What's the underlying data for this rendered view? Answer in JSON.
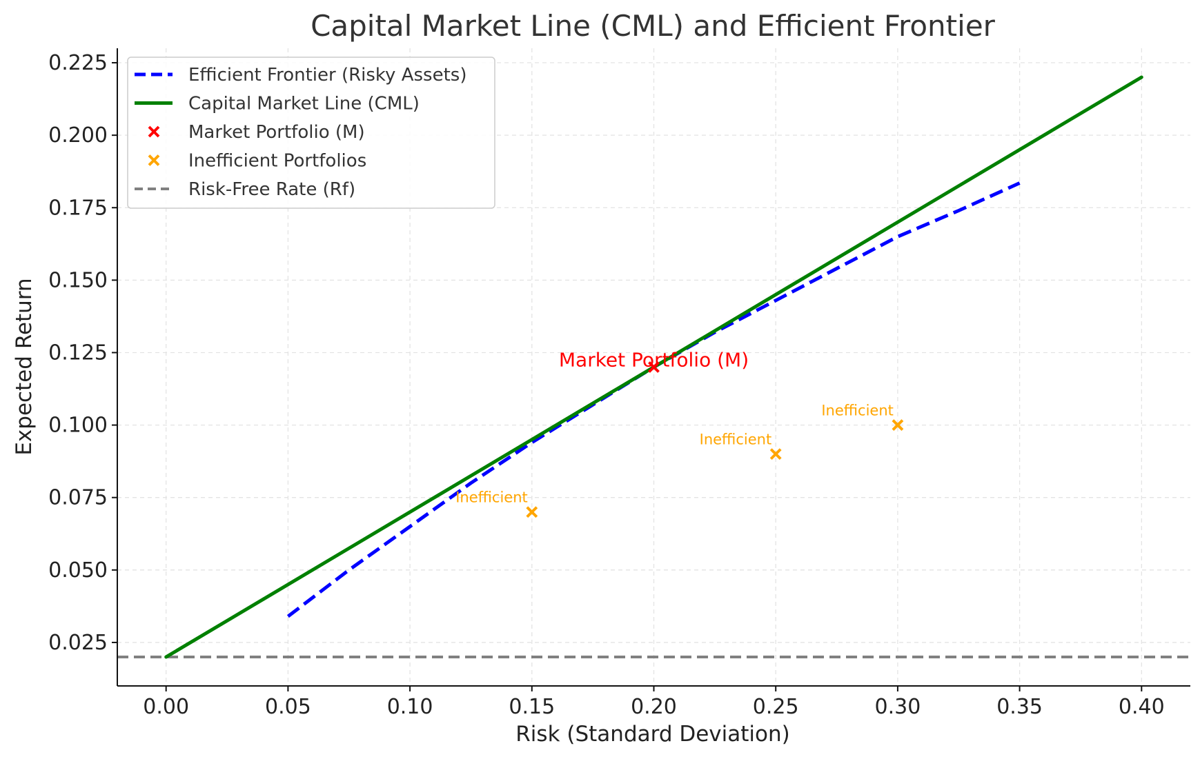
{
  "chart_data": {
    "type": "line",
    "title": "Capital Market Line (CML) and Efficient Frontier",
    "xlabel": "Risk (Standard Deviation)",
    "ylabel": "Expected Return",
    "xlim": [
      -0.02,
      0.42
    ],
    "ylim": [
      0.01,
      0.23
    ],
    "xticks": [
      "0.00",
      "0.05",
      "0.10",
      "0.15",
      "0.20",
      "0.25",
      "0.30",
      "0.35",
      "0.40"
    ],
    "yticks": [
      "0.025",
      "0.050",
      "0.075",
      "0.100",
      "0.125",
      "0.150",
      "0.175",
      "0.200",
      "0.225"
    ],
    "grid": true,
    "legend_position": "top-left",
    "series": [
      {
        "name": "Efficient Frontier (Risky Assets)",
        "kind": "line",
        "style": "dashed",
        "color": "#0000ff",
        "points": [
          [
            0.05,
            0.034
          ],
          [
            0.075,
            0.05
          ],
          [
            0.1,
            0.065
          ],
          [
            0.125,
            0.08
          ],
          [
            0.15,
            0.094
          ],
          [
            0.175,
            0.107
          ],
          [
            0.2,
            0.12
          ],
          [
            0.225,
            0.132
          ],
          [
            0.25,
            0.143
          ],
          [
            0.275,
            0.154
          ],
          [
            0.3,
            0.165
          ],
          [
            0.325,
            0.174
          ],
          [
            0.35,
            0.1835
          ]
        ]
      },
      {
        "name": "Capital Market Line (CML)",
        "kind": "line",
        "style": "solid",
        "color": "#008000",
        "points": [
          [
            0.0,
            0.02
          ],
          [
            0.4,
            0.22
          ]
        ]
      },
      {
        "name": "Market Portfolio (M)",
        "kind": "scatter",
        "marker": "x",
        "color": "#ff0000",
        "points": [
          [
            0.2,
            0.12
          ]
        ]
      },
      {
        "name": "Inefficient Portfolios",
        "kind": "scatter",
        "marker": "x",
        "color": "#ffa500",
        "points": [
          [
            0.15,
            0.07
          ],
          [
            0.25,
            0.09
          ],
          [
            0.3,
            0.1
          ]
        ]
      },
      {
        "name": "Risk-Free Rate (Rf)",
        "kind": "hline",
        "style": "dashed",
        "color": "#808080",
        "y": 0.02
      }
    ],
    "annotations": [
      {
        "text": "Market Portfolio (M)",
        "x": 0.2,
        "y": 0.12,
        "color": "#ff0000",
        "size": "large"
      },
      {
        "text": "Inefficient",
        "x": 0.15,
        "y": 0.07,
        "color": "#ffa500",
        "size": "small"
      },
      {
        "text": "Inefficient",
        "x": 0.25,
        "y": 0.09,
        "color": "#ffa500",
        "size": "small"
      },
      {
        "text": "Inefficient",
        "x": 0.3,
        "y": 0.1,
        "color": "#ffa500",
        "size": "small"
      }
    ]
  }
}
